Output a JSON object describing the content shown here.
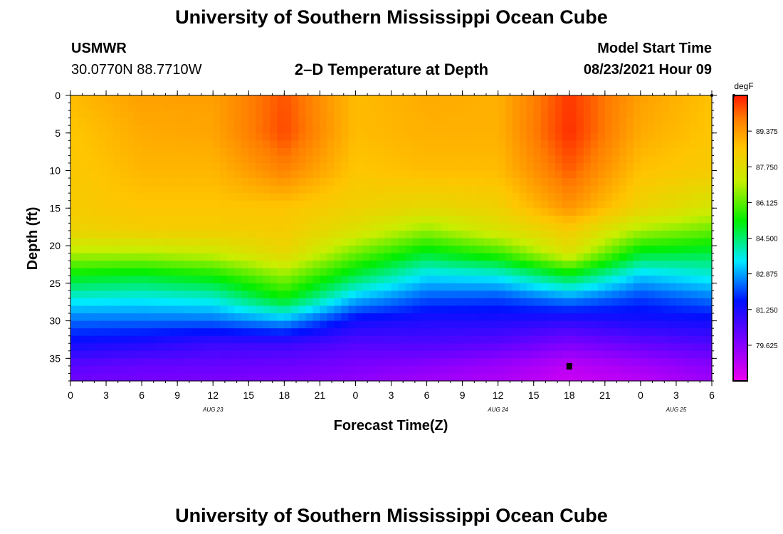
{
  "page": {
    "title_top": "University of Southern Mississippi Ocean Cube",
    "title_bottom": "University of Southern Mississippi Ocean Cube",
    "station_id": "USMWR",
    "location": "30.0770N  88.7710W",
    "plot_title": "2–D Temperature at Depth",
    "model_start_label": "Model Start Time",
    "model_start_value": "08/23/2021 Hour 09"
  },
  "chart_data": {
    "type": "heatmap",
    "title": "2–D Temperature at Depth",
    "xlabel": "Forecast Time(Z)",
    "ylabel": "Depth (ft)",
    "x_hours_range": [
      0,
      54
    ],
    "x_ticks": [
      {
        "hour": 0,
        "label": "0"
      },
      {
        "hour": 3,
        "label": "3"
      },
      {
        "hour": 6,
        "label": "6"
      },
      {
        "hour": 9,
        "label": "9"
      },
      {
        "hour": 12,
        "label": "12"
      },
      {
        "hour": 15,
        "label": "15"
      },
      {
        "hour": 18,
        "label": "18"
      },
      {
        "hour": 21,
        "label": "21"
      },
      {
        "hour": 24,
        "label": "0"
      },
      {
        "hour": 27,
        "label": "3"
      },
      {
        "hour": 30,
        "label": "6"
      },
      {
        "hour": 33,
        "label": "9"
      },
      {
        "hour": 36,
        "label": "12"
      },
      {
        "hour": 39,
        "label": "15"
      },
      {
        "hour": 42,
        "label": "18"
      },
      {
        "hour": 45,
        "label": "21"
      },
      {
        "hour": 48,
        "label": "0"
      },
      {
        "hour": 51,
        "label": "3"
      },
      {
        "hour": 54,
        "label": "6"
      }
    ],
    "date_labels": [
      {
        "hour": 12,
        "label": "AUG  23"
      },
      {
        "hour": 36,
        "label": "AUG  24"
      },
      {
        "hour": 51,
        "label": "AUG  25"
      }
    ],
    "y_range": [
      0,
      38
    ],
    "y_ticks": [
      0,
      5,
      10,
      15,
      20,
      25,
      30,
      35
    ],
    "colorbar": {
      "unit": "degF",
      "range": [
        78.0,
        91.0
      ],
      "tick_values": [
        89.375,
        87.75,
        86.125,
        84.5,
        82.875,
        81.25,
        79.625
      ],
      "tick_labels": [
        "89.375",
        "87.750",
        "86.125",
        "84.500",
        "82.875",
        "81.250",
        "79.625"
      ]
    },
    "grid": {
      "x_hours": [
        0,
        6,
        12,
        18,
        24,
        30,
        36,
        42,
        48,
        54
      ],
      "depths": [
        0,
        5,
        10,
        15,
        18,
        21,
        24,
        27,
        30,
        33,
        36,
        38
      ],
      "temperatures": [
        [
          88.8,
          89.3,
          89.3,
          90.4,
          88.8,
          89.1,
          89.0,
          90.7,
          89.3,
          88.7
        ],
        [
          88.6,
          89.1,
          89.2,
          90.5,
          88.8,
          89.0,
          89.0,
          90.8,
          89.1,
          88.6
        ],
        [
          88.5,
          88.9,
          88.9,
          89.8,
          88.6,
          88.8,
          88.8,
          90.3,
          88.7,
          88.4
        ],
        [
          88.4,
          88.6,
          88.6,
          88.6,
          88.2,
          87.9,
          88.2,
          89.5,
          88.1,
          87.4
        ],
        [
          88.1,
          88.3,
          88.3,
          88.4,
          87.6,
          86.6,
          87.5,
          88.4,
          86.8,
          86.2
        ],
        [
          86.9,
          86.9,
          87.2,
          88.0,
          86.3,
          85.0,
          85.8,
          87.6,
          85.0,
          84.8
        ],
        [
          85.2,
          85.0,
          85.4,
          86.6,
          84.8,
          83.4,
          83.6,
          85.0,
          83.2,
          83.7
        ],
        [
          83.7,
          83.6,
          83.8,
          85.3,
          83.1,
          82.2,
          82.1,
          82.7,
          82.0,
          82.5
        ],
        [
          82.4,
          82.4,
          82.4,
          82.9,
          81.4,
          81.2,
          81.2,
          81.0,
          81.3,
          81.4
        ],
        [
          81.4,
          81.2,
          80.8,
          80.8,
          80.4,
          80.5,
          80.3,
          79.8,
          80.2,
          80.5
        ],
        [
          80.3,
          80.1,
          80.1,
          80.0,
          79.8,
          79.6,
          79.3,
          78.8,
          79.2,
          79.6
        ],
        [
          80.0,
          79.9,
          79.8,
          79.7,
          79.5,
          79.2,
          79.0,
          78.6,
          78.8,
          79.3
        ]
      ]
    },
    "marker": {
      "hour": 42,
      "depth": 36
    }
  }
}
